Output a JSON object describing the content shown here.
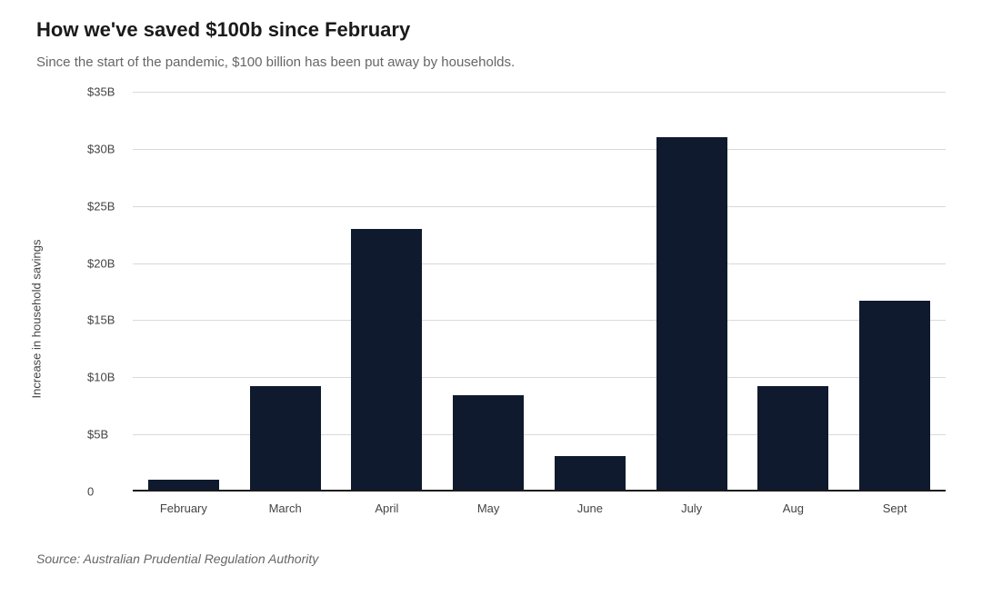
{
  "title": "How we've saved $100b since February",
  "subtitle": "Since the start of the pandemic, $100 billion has been put away by households.",
  "source": "Source: Australian Prudential Regulation Authority",
  "chart": {
    "type": "bar",
    "ylabel": "Increase in household savings",
    "categories": [
      "February",
      "March",
      "April",
      "May",
      "June",
      "July",
      "Aug",
      "Sept"
    ],
    "values": [
      1.0,
      9.2,
      23.0,
      8.4,
      3.1,
      31.0,
      9.2,
      16.7
    ],
    "bar_color": "#0f1a2e",
    "bar_width": 0.7,
    "ylim": [
      0,
      35
    ],
    "ytick_step": 5,
    "ytick_labels": [
      "0",
      "$5B",
      "$10B",
      "$15B",
      "$20B",
      "$25B",
      "$30B",
      "$35B"
    ],
    "grid_color": "#d9d9d9",
    "baseline_color": "#1a1a1a",
    "background_color": "#ffffff",
    "title_fontsize": 22,
    "subtitle_fontsize": 15,
    "label_fontsize": 13,
    "tick_fontsize": 13,
    "source_fontsize": 14,
    "title_color": "#1a1a1a",
    "subtitle_color": "#666666",
    "tick_color": "#444444",
    "source_color": "#666666"
  }
}
